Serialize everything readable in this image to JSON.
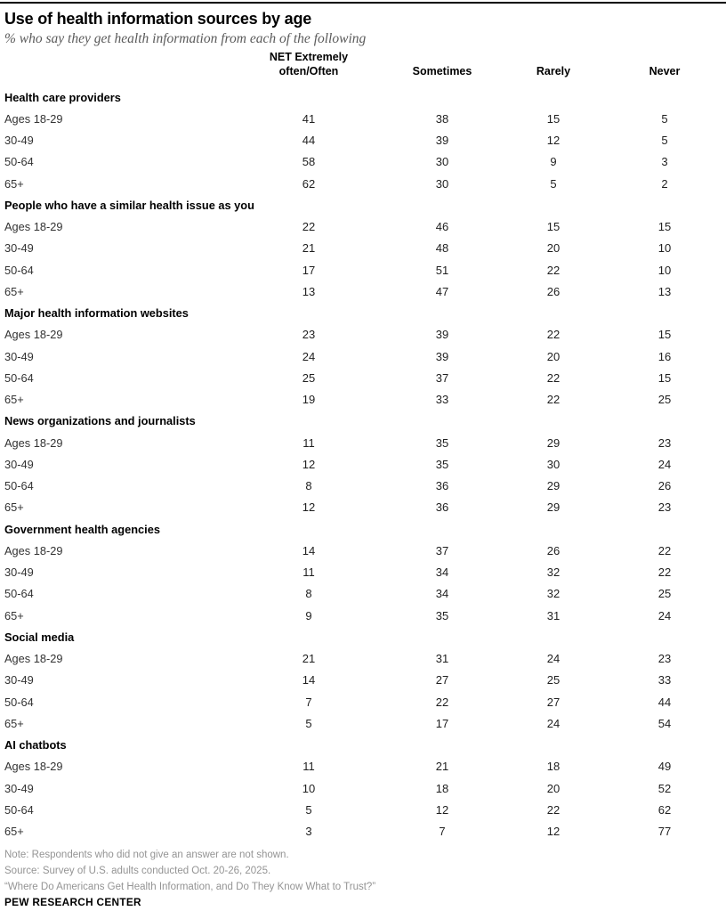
{
  "header": {
    "title": "Use of health information sources by age",
    "subtitle": "% who say they get health information from each of the following"
  },
  "chart_data": {
    "type": "table",
    "title": "Use of health information sources by age",
    "subtitle": "% who say they get health information from each of the following",
    "columns": [
      "NET Extremely often/Often",
      "Sometimes",
      "Rarely",
      "Never"
    ],
    "net_header_lines": [
      "NET Extremely",
      "often/Often"
    ],
    "age_labels": [
      "Ages 18-29",
      "30-49",
      "50-64",
      "65+"
    ],
    "sections": [
      {
        "label": "Health care providers",
        "rows": [
          [
            41,
            38,
            15,
            5
          ],
          [
            44,
            39,
            12,
            5
          ],
          [
            58,
            30,
            9,
            3
          ],
          [
            62,
            30,
            5,
            2
          ]
        ]
      },
      {
        "label": "People who have a similar health issue as you",
        "rows": [
          [
            22,
            46,
            15,
            15
          ],
          [
            21,
            48,
            20,
            10
          ],
          [
            17,
            51,
            22,
            10
          ],
          [
            13,
            47,
            26,
            13
          ]
        ]
      },
      {
        "label": "Major health information websites",
        "rows": [
          [
            23,
            39,
            22,
            15
          ],
          [
            24,
            39,
            20,
            16
          ],
          [
            25,
            37,
            22,
            15
          ],
          [
            19,
            33,
            22,
            25
          ]
        ]
      },
      {
        "label": "News organizations and journalists",
        "rows": [
          [
            11,
            35,
            29,
            23
          ],
          [
            12,
            35,
            30,
            24
          ],
          [
            8,
            36,
            29,
            26
          ],
          [
            12,
            36,
            29,
            23
          ]
        ]
      },
      {
        "label": "Government health agencies",
        "rows": [
          [
            14,
            37,
            26,
            22
          ],
          [
            11,
            34,
            32,
            22
          ],
          [
            8,
            34,
            32,
            25
          ],
          [
            9,
            35,
            31,
            24
          ]
        ]
      },
      {
        "label": "Social media",
        "rows": [
          [
            21,
            31,
            24,
            23
          ],
          [
            14,
            27,
            25,
            33
          ],
          [
            7,
            22,
            27,
            44
          ],
          [
            5,
            17,
            24,
            54
          ]
        ]
      },
      {
        "label": "AI chatbots",
        "rows": [
          [
            11,
            21,
            18,
            49
          ],
          [
            10,
            18,
            20,
            52
          ],
          [
            5,
            12,
            22,
            62
          ],
          [
            3,
            7,
            12,
            77
          ]
        ]
      }
    ]
  },
  "colors": {
    "title": "#000000",
    "subtitle_gray": "#5a5a5a",
    "note_gray": "#949494",
    "top_rule": "#000000",
    "bottom_rule": "#8c8c8c"
  },
  "footer": {
    "note": "Note: Respondents who did not give an answer are not shown.",
    "source": "Source: Survey of U.S. adults conducted Oct. 20-26, 2025.",
    "quote": "“Where Do Americans Get Health Information, and Do They Know What to Trust?”",
    "brand": "PEW RESEARCH CENTER"
  }
}
